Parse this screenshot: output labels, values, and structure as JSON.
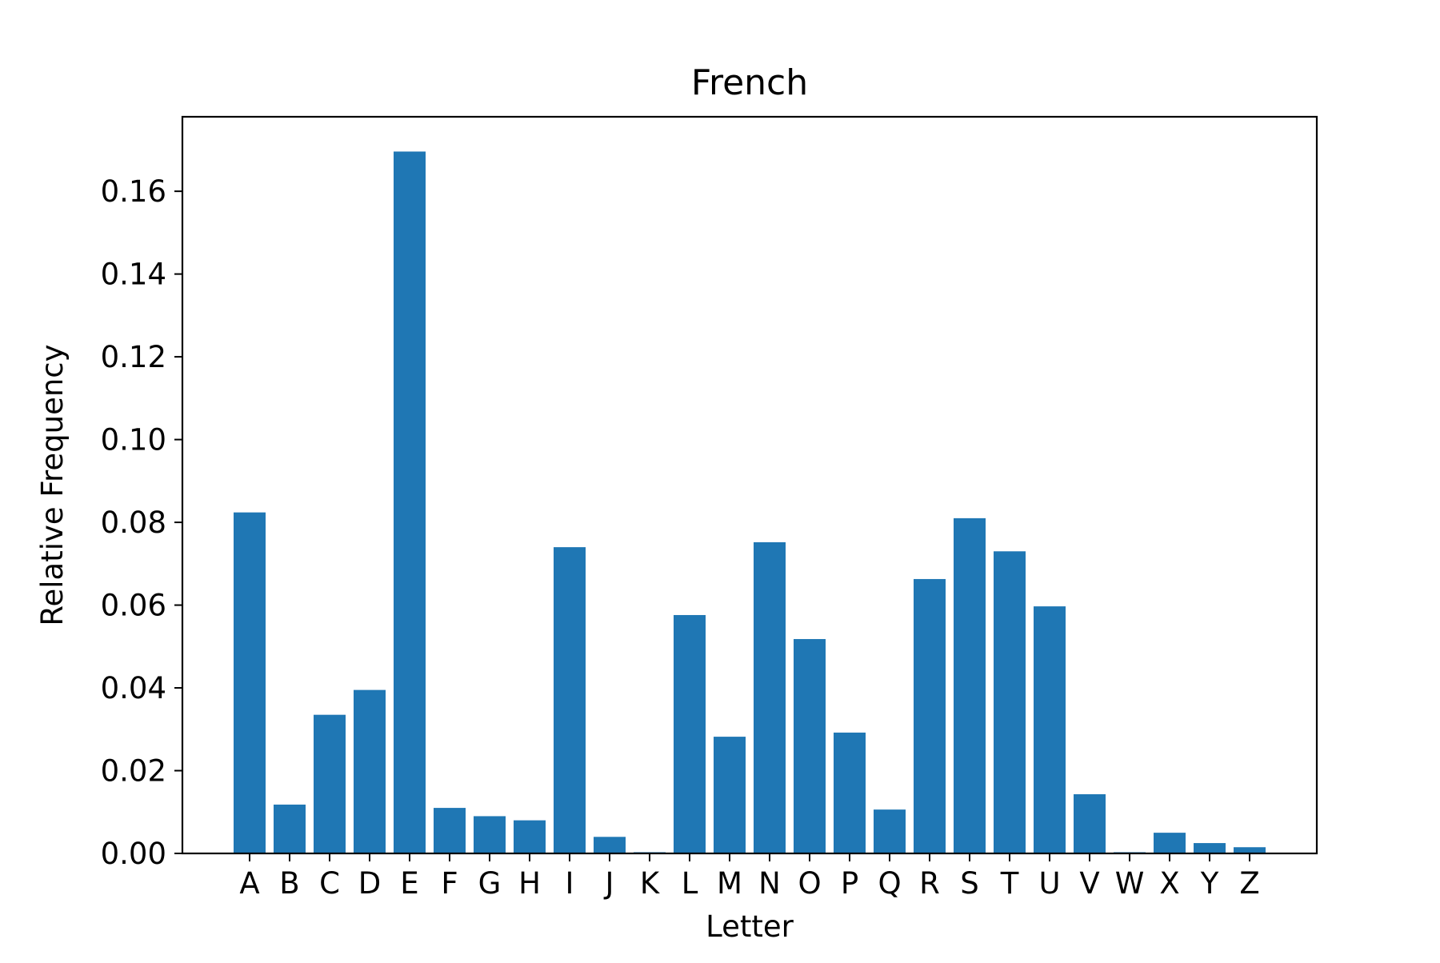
{
  "chart_data": {
    "type": "bar",
    "title": "French",
    "xlabel": "Letter",
    "ylabel": "Relative Frequency",
    "categories": [
      "A",
      "B",
      "C",
      "D",
      "E",
      "F",
      "G",
      "H",
      "I",
      "J",
      "K",
      "L",
      "M",
      "N",
      "O",
      "P",
      "Q",
      "R",
      "S",
      "T",
      "U",
      "V",
      "W",
      "X",
      "Y",
      "Z"
    ],
    "values": [
      0.0824,
      0.0118,
      0.0335,
      0.0395,
      0.1696,
      0.011,
      0.009,
      0.008,
      0.074,
      0.004,
      0.0003,
      0.0576,
      0.0282,
      0.0752,
      0.0518,
      0.0292,
      0.0106,
      0.0663,
      0.081,
      0.073,
      0.0597,
      0.0143,
      0.0003,
      0.005,
      0.0025,
      0.0015
    ],
    "ylim": [
      0,
      0.178
    ],
    "yticks": [
      0.0,
      0.02,
      0.04,
      0.06,
      0.08,
      0.1,
      0.12,
      0.14,
      0.16
    ],
    "ytick_labels": [
      "0.00",
      "0.02",
      "0.04",
      "0.06",
      "0.08",
      "0.10",
      "0.12",
      "0.14",
      "0.16"
    ],
    "grid": false,
    "bar_color": "#1f77b4"
  }
}
